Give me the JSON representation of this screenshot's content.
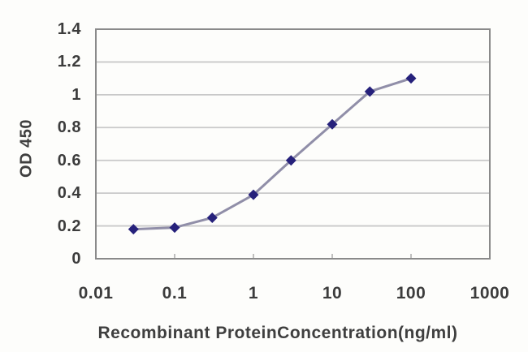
{
  "chart_data": {
    "type": "line",
    "title": "",
    "xlabel": "Recombinant ProteinConcentration(ng/ml)",
    "ylabel": "OD 450",
    "x_scale": "log",
    "xlim": [
      0.01,
      1000
    ],
    "ylim": [
      0,
      1.4
    ],
    "x_ticks": [
      0.01,
      0.1,
      1,
      10,
      100,
      1000
    ],
    "x_tick_labels": [
      "0.01",
      "0.1",
      "1",
      "10",
      "100",
      "1000"
    ],
    "y_ticks": [
      0,
      0.2,
      0.4,
      0.6,
      0.8,
      1,
      1.2,
      1.4
    ],
    "y_tick_labels": [
      "0",
      "0.2",
      "0.4",
      "0.6",
      "0.8",
      "1",
      "1.2",
      "1.4"
    ],
    "grid": "horizontal",
    "legend": "none",
    "series": [
      {
        "name": "OD 450",
        "x": [
          0.03,
          0.1,
          0.3,
          1,
          3,
          10,
          30,
          100
        ],
        "y": [
          0.18,
          0.19,
          0.25,
          0.39,
          0.6,
          0.82,
          1.02,
          1.1
        ]
      }
    ],
    "colors": {
      "marker": "#26217b",
      "line": "#908ea8",
      "gridline": "#c9c9c9",
      "axis_border": "#8a8a8a",
      "tick_mark": "#aaaaaa",
      "text": "#3c3c3c",
      "background": "#fdfdfb"
    }
  }
}
